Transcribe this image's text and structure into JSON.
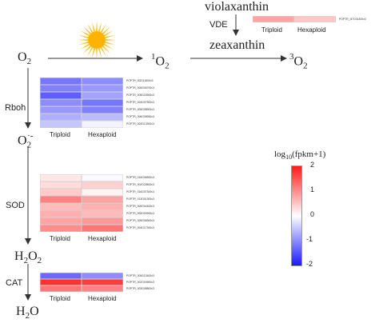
{
  "metabolites": {
    "o2": "O",
    "o2_sub": "2",
    "singlet_o2_sup": "1",
    "singlet_o2": "O",
    "singlet_o2_sub": "2",
    "triplet_o2_sup": "3",
    "triplet_o2": "O",
    "triplet_o2_sub": "2",
    "superoxide": "O",
    "superoxide_sub": "2",
    "superoxide_sup": "·-",
    "h2o2_a": "H",
    "h2o2_sub1": "2",
    "h2o2_b": "O",
    "h2o2_sub2": "2",
    "h2o_a": "H",
    "h2o_sub": "2",
    "h2o_b": "O",
    "violaxanthin": "violaxanthin",
    "zeaxanthin": "zeaxanthin"
  },
  "enzymes": {
    "vde": "VDE",
    "rboh": "Rboh",
    "sod": "SOD",
    "cat": "CAT"
  },
  "columns": [
    "Triploid",
    "Hexaploid"
  ],
  "heatmaps": {
    "vde": {
      "genes": [
        "POPTR_0l7G01400v3"
      ],
      "values": [
        [
          0.8,
          0.5
        ]
      ]
    },
    "rboh": {
      "genes": [
        "POPTR_0l3G11600v3",
        "POPTR_005G05700v3",
        "POPTR_005G15900v3",
        "POPTR_004G07900v3",
        "POPTR_005G08900v3",
        "POPTR_006G08930v3",
        "POPTR_003G13300v3"
      ],
      "values": [
        [
          -1.2,
          -1.0
        ],
        [
          -1.1,
          -0.9
        ],
        [
          -1.4,
          -0.8
        ],
        [
          -1.0,
          -1.2
        ],
        [
          -0.9,
          -1.1
        ],
        [
          -0.7,
          -0.6
        ],
        [
          -0.5,
          -0.1
        ]
      ]
    },
    "sod": {
      "genes": [
        "POPTR_015G06900v3",
        "POPTR_002G25500v3",
        "POPTR_016G07300v3",
        "POPTR_013G01300v3",
        "POPTR_005G04400v3",
        "POPTR_005G00900v3",
        "POPTR_005G08300v3",
        "POPTR_004G17300v3"
      ],
      "values": [
        [
          0.2,
          -0.05
        ],
        [
          0.3,
          0.4
        ],
        [
          0.45,
          0.1
        ],
        [
          1.1,
          0.8
        ],
        [
          0.6,
          0.7
        ],
        [
          0.7,
          0.6
        ],
        [
          0.8,
          0.9
        ],
        [
          1.0,
          1.2
        ]
      ]
    },
    "cat": {
      "genes": [
        "POPTR_005G13400v3",
        "POPTR_002G00900v3",
        "POPTR_003G08800v3"
      ],
      "values": [
        [
          -1.3,
          -1.0
        ],
        [
          1.8,
          1.7
        ],
        [
          1.2,
          1.1
        ]
      ]
    }
  },
  "legend": {
    "title_log": "log",
    "title_sub": "10",
    "title_rest": "(fpkm+1)",
    "ticks": [
      "2",
      "1",
      "0",
      "-1",
      "-2"
    ],
    "range": [
      -2,
      2
    ],
    "colors": {
      "low": "#1a1aff",
      "mid": "#ffffff",
      "high": "#ff1a1a"
    }
  },
  "colors": {
    "arrow": "#333333",
    "sun_rays": "#f4c430",
    "sun_core": "#ffb300",
    "cell_border": "#d0d0d0"
  }
}
